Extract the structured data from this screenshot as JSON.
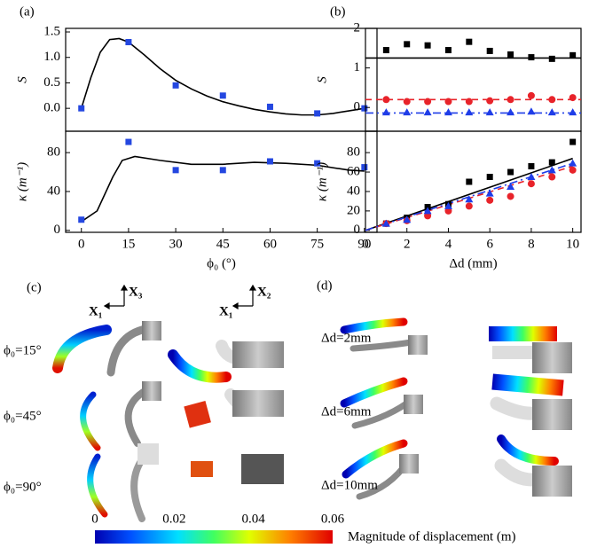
{
  "panels": {
    "a": "(a)",
    "b": "(b)",
    "c": "(c)",
    "d": "(d)"
  },
  "panel_c": {
    "axes_left": [
      "X₁",
      "X₃"
    ],
    "axes_right": [
      "X₁",
      "X₂"
    ],
    "rows": [
      "ϕ₀=15°",
      "ϕ₀=45°",
      "ϕ₀=90°"
    ]
  },
  "panel_d": {
    "rows": [
      "Δd=2mm",
      "Δd=6mm",
      "Δd=10mm"
    ]
  },
  "colorbar": {
    "ticks": [
      0,
      0.02,
      0.04,
      0.06
    ],
    "label": "Magnitude of displacement (m)"
  },
  "chart_data": [
    {
      "type": "line",
      "y_label": "S",
      "xlim": [
        -5,
        94
      ],
      "ylim": [
        -0.45,
        1.57
      ],
      "yticks": [
        {
          "value": 0,
          "label": "0.0"
        },
        {
          "value": 0.5,
          "label": "0.5"
        },
        {
          "value": 1,
          "label": "1.0"
        },
        {
          "value": 1.5,
          "label": "1.5"
        }
      ],
      "series": [
        {
          "color": "#000000",
          "x": [
            0,
            3,
            6,
            9,
            12,
            15,
            20,
            25,
            30,
            35,
            40,
            45,
            50,
            55,
            60,
            65,
            70,
            75,
            80,
            85,
            90
          ],
          "values": [
            0,
            0.6,
            1.1,
            1.35,
            1.37,
            1.3,
            1.05,
            0.78,
            0.55,
            0.38,
            0.24,
            0.13,
            0.05,
            -0.02,
            -0.07,
            -0.11,
            -0.13,
            -0.13,
            -0.1,
            -0.05,
            0
          ]
        },
        {
          "color": "#2447e0",
          "marker": "square",
          "x": [
            0,
            15,
            30,
            45,
            60,
            75,
            90
          ],
          "values": [
            0,
            1.3,
            0.45,
            0.25,
            0.03,
            -0.1,
            0
          ]
        }
      ]
    },
    {
      "type": "line",
      "y_label": "κ (m⁻¹)",
      "x_label": "ϕ₀ (°)",
      "xlim": [
        -5,
        94
      ],
      "ylim": [
        -2,
        102
      ],
      "xticks": [
        0,
        15,
        30,
        45,
        60,
        75,
        90
      ],
      "yticks": [
        0,
        40,
        80
      ],
      "series": [
        {
          "color": "#000000",
          "x": [
            0,
            5,
            10,
            13,
            17,
            25,
            35,
            45,
            55,
            65,
            75,
            85,
            90
          ],
          "values": [
            9,
            20,
            55,
            72,
            76,
            72,
            68,
            68,
            70,
            69,
            67,
            62,
            61
          ]
        },
        {
          "color": "#2447e0",
          "marker": "square",
          "x": [
            0,
            15,
            30,
            45,
            60,
            75,
            90
          ],
          "values": [
            11,
            91,
            62,
            62,
            71,
            69,
            65
          ]
        }
      ]
    },
    {
      "type": "line",
      "y_label": "S",
      "xlim": [
        0,
        10.4
      ],
      "ylim": [
        -0.6,
        2.0
      ],
      "yticks": [
        0,
        1,
        2
      ],
      "series": [
        {
          "color": "#000000",
          "x": [
            0,
            10.4
          ],
          "values": [
            1.25,
            1.25
          ]
        },
        {
          "color": "#e8232a",
          "dash": "7,5",
          "x": [
            0,
            10.4
          ],
          "values": [
            0.2,
            0.2
          ]
        },
        {
          "color": "#1f3de8",
          "dash": "9,4,2,4",
          "x": [
            0,
            10.4
          ],
          "values": [
            -0.14,
            -0.14
          ]
        },
        {
          "color": "#000000",
          "marker": "square",
          "x": [
            1,
            2,
            3,
            4,
            5,
            6,
            7,
            8,
            9,
            10
          ],
          "values": [
            1.45,
            1.6,
            1.57,
            1.45,
            1.66,
            1.43,
            1.34,
            1.27,
            1.23,
            1.32
          ]
        },
        {
          "color": "#e8232a",
          "marker": "circle",
          "x": [
            1,
            2,
            3,
            4,
            5,
            6,
            7,
            8,
            9,
            10
          ],
          "values": [
            0.2,
            0.15,
            0.15,
            0.15,
            0.15,
            0.17,
            0.2,
            0.3,
            0.2,
            0.25
          ]
        },
        {
          "color": "#1f3de8",
          "marker": "triangle",
          "x": [
            1,
            2,
            3,
            4,
            5,
            6,
            7,
            8,
            9,
            10
          ],
          "values": [
            -0.12,
            -0.12,
            -0.12,
            -0.12,
            -0.12,
            -0.12,
            -0.12,
            -0.1,
            -0.12,
            -0.12
          ]
        }
      ]
    },
    {
      "type": "line",
      "y_label": "κ (m⁻¹)",
      "x_label": "Δd (mm)",
      "xlim": [
        0,
        10.4
      ],
      "ylim": [
        -2,
        102
      ],
      "xticks": [
        0,
        2,
        4,
        6,
        8,
        10
      ],
      "yticks": [
        0,
        20,
        40,
        60,
        80
      ],
      "series": [
        {
          "color": "#000000",
          "x": [
            0,
            10
          ],
          "values": [
            0,
            74
          ]
        },
        {
          "color": "#e8232a",
          "dash": "7,5",
          "x": [
            0,
            10
          ],
          "values": [
            0,
            66
          ]
        },
        {
          "color": "#1f3de8",
          "dash": "9,4,2,4",
          "x": [
            0,
            10
          ],
          "values": [
            0,
            69
          ]
        },
        {
          "color": "#000000",
          "marker": "square",
          "x": [
            1,
            2,
            3,
            4,
            5,
            6,
            7,
            8,
            9,
            10
          ],
          "values": [
            7,
            13,
            24,
            27,
            50,
            55,
            60,
            66,
            70,
            91
          ]
        },
        {
          "color": "#e8232a",
          "marker": "circle",
          "x": [
            1,
            2,
            3,
            4,
            5,
            6,
            7,
            8,
            9,
            10
          ],
          "values": [
            7,
            10,
            15,
            20,
            25,
            31,
            35,
            48,
            55,
            62
          ]
        },
        {
          "color": "#1f3de8",
          "marker": "triangle",
          "x": [
            1,
            2,
            3,
            4,
            5,
            6,
            7,
            8,
            9,
            10
          ],
          "values": [
            7,
            11,
            20,
            25,
            32,
            38,
            45,
            55,
            62,
            69
          ]
        }
      ]
    }
  ]
}
